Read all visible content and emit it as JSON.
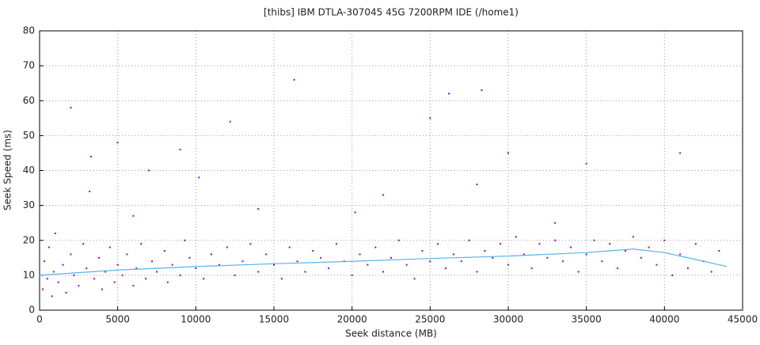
{
  "chart_data": {
    "type": "scatter",
    "title": "[thibs] IBM DTLA-307045 45G 7200RPM IDE (/home1)",
    "x_label": "Seek distance (MB)",
    "y_label": "Seek Speed (ms)",
    "xlim": [
      0,
      45000
    ],
    "ylim": [
      0,
      80
    ],
    "xticks": [
      0,
      5000,
      10000,
      15000,
      20000,
      25000,
      30000,
      35000,
      40000,
      45000
    ],
    "yticks": [
      0,
      10,
      20,
      30,
      40,
      50,
      60,
      70,
      80
    ],
    "grid": true,
    "series": [
      {
        "type": "scatter",
        "color": "#9400d3",
        "x": [
          200,
          300,
          500,
          600,
          800,
          900,
          1000,
          1200,
          1500,
          1700,
          2000,
          2000,
          2200,
          2500,
          2800,
          3000,
          3200,
          3500,
          3800,
          4000,
          4200,
          4500,
          4800,
          5000,
          5000,
          5300,
          5600,
          6000,
          6200,
          6500,
          6800,
          7000,
          7200,
          7500,
          8000,
          8200,
          8500,
          9000,
          9300,
          9600,
          10000,
          10200,
          10500,
          11000,
          11500,
          12000,
          12200,
          12500,
          13000,
          13500,
          14000,
          14500,
          15000,
          15500,
          16000,
          16300,
          16500,
          17000,
          17500,
          18000,
          18500,
          19000,
          19500,
          20000,
          20200,
          20500,
          21000,
          21500,
          22000,
          22500,
          23000,
          23500,
          24000,
          24500,
          25000,
          25000,
          25500,
          26000,
          26200,
          26500,
          27000,
          27500,
          28000,
          28300,
          28500,
          29000,
          29500,
          30000,
          30500,
          31000,
          31500,
          32000,
          32500,
          33000,
          33500,
          34000,
          34500,
          35000,
          35500,
          36000,
          36500,
          37000,
          37500,
          38000,
          38500,
          39000,
          39500,
          40000,
          40500,
          41000,
          41500,
          42000,
          42500,
          43000,
          43500,
          3300,
          9000,
          30000,
          35000,
          41000,
          14000,
          22000,
          33000,
          6000,
          28000
        ],
        "values": [
          6,
          14,
          9,
          18,
          4,
          11,
          22,
          8,
          13,
          5,
          16,
          58,
          10,
          7,
          19,
          12,
          34,
          9,
          15,
          6,
          11,
          18,
          8,
          48,
          13,
          10,
          16,
          7,
          12,
          19,
          9,
          40,
          14,
          11,
          17,
          8,
          13,
          10,
          20,
          15,
          12,
          38,
          9,
          16,
          13,
          18,
          54,
          10,
          14,
          19,
          11,
          16,
          13,
          9,
          18,
          66,
          14,
          11,
          17,
          15,
          12,
          19,
          14,
          10,
          28,
          16,
          13,
          18,
          11,
          15,
          20,
          13,
          9,
          17,
          14,
          55,
          19,
          12,
          62,
          16,
          14,
          20,
          11,
          63,
          17,
          15,
          19,
          13,
          21,
          16,
          12,
          19,
          15,
          20,
          14,
          18,
          11,
          16,
          20,
          14,
          19,
          12,
          17,
          21,
          15,
          18,
          13,
          20,
          10,
          16,
          12,
          19,
          14,
          11,
          17,
          44,
          46,
          45,
          42,
          45,
          29,
          33,
          25,
          27,
          36
        ]
      },
      {
        "type": "line",
        "color": "#56b4e9",
        "x": [
          0,
          5000,
          10000,
          15000,
          20000,
          25000,
          30000,
          35000,
          38000,
          40000,
          42000,
          44000
        ],
        "values": [
          10,
          11.5,
          12.5,
          13.3,
          14,
          14.8,
          15.5,
          16.5,
          17.5,
          16.5,
          14.5,
          12.5
        ]
      }
    ]
  }
}
